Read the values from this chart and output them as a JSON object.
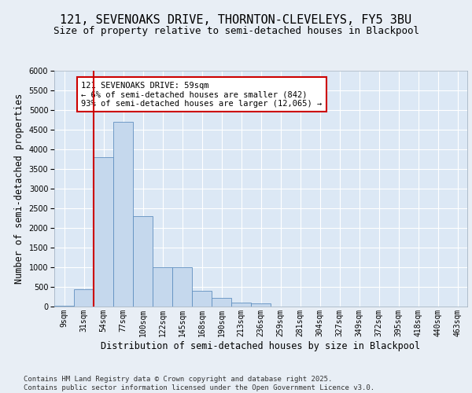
{
  "title_line1": "121, SEVENOAKS DRIVE, THORNTON-CLEVELEYS, FY5 3BU",
  "title_line2": "Size of property relative to semi-detached houses in Blackpool",
  "xlabel": "Distribution of semi-detached houses by size in Blackpool",
  "ylabel": "Number of semi-detached properties",
  "bin_labels": [
    "9sqm",
    "31sqm",
    "54sqm",
    "77sqm",
    "100sqm",
    "122sqm",
    "145sqm",
    "168sqm",
    "190sqm",
    "213sqm",
    "236sqm",
    "259sqm",
    "281sqm",
    "304sqm",
    "327sqm",
    "349sqm",
    "372sqm",
    "395sqm",
    "418sqm",
    "440sqm",
    "463sqm"
  ],
  "bar_heights": [
    30,
    450,
    3800,
    4700,
    2300,
    1000,
    1000,
    400,
    230,
    100,
    80,
    0,
    0,
    0,
    0,
    0,
    0,
    0,
    0,
    0,
    0
  ],
  "bar_color": "#c5d8ed",
  "bar_edge_color": "#6090c0",
  "vline_color": "#cc0000",
  "vline_pos": 2,
  "annotation_text": "121 SEVENOAKS DRIVE: 59sqm\n← 6% of semi-detached houses are smaller (842)\n93% of semi-detached houses are larger (12,065) →",
  "annotation_box_edgecolor": "#cc0000",
  "ylim_max": 6000,
  "yticks": [
    0,
    500,
    1000,
    1500,
    2000,
    2500,
    3000,
    3500,
    4000,
    4500,
    5000,
    5500,
    6000
  ],
  "bg_color": "#e8eef5",
  "plot_bg_color": "#dce8f5",
  "grid_color": "#ffffff",
  "title_fontsize": 11,
  "subtitle_fontsize": 9,
  "axis_label_fontsize": 8.5,
  "tick_fontsize": 7,
  "annot_fontsize": 7.5,
  "footer_fontsize": 6.5,
  "footer_text": "Contains HM Land Registry data © Crown copyright and database right 2025.\nContains public sector information licensed under the Open Government Licence v3.0."
}
